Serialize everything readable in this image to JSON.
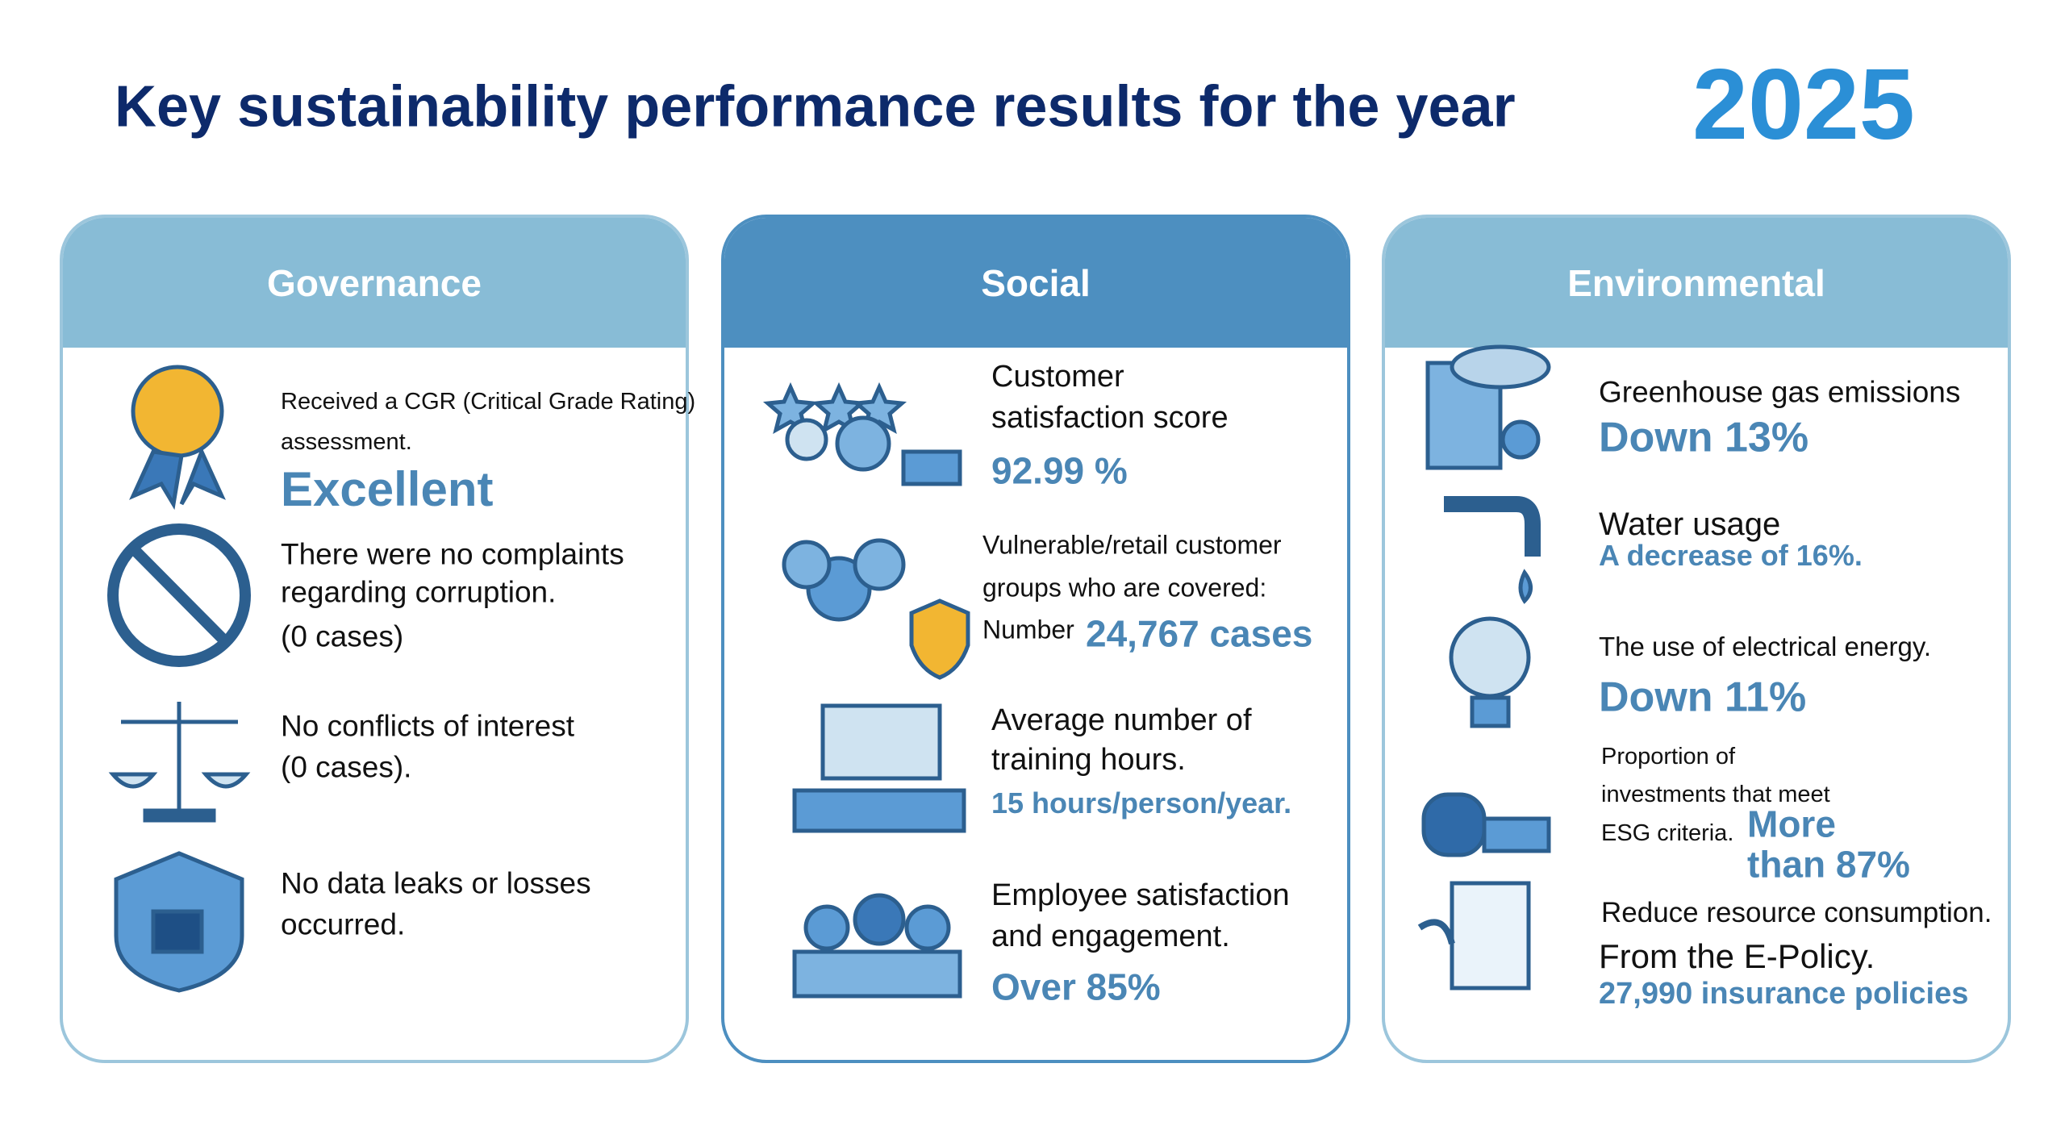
{
  "header": {
    "title": "Key sustainability performance results for the year",
    "year": "2025"
  },
  "columns": [
    {
      "title": "Governance",
      "items": [
        {
          "lines": [
            "Received a CGR (Critical Grade Rating)",
            "assessment."
          ],
          "value": "Excellent"
        },
        {
          "lines": [
            "There were no complaints",
            "regarding corruption.",
            "(0 cases)"
          ]
        },
        {
          "lines": [
            "No conflicts of interest",
            "(0 cases)."
          ]
        },
        {
          "lines": [
            "No data leaks or losses",
            "occurred."
          ]
        }
      ]
    },
    {
      "title": "Social",
      "items": [
        {
          "lines": [
            "Customer",
            "satisfaction score"
          ],
          "value": "92.99 %"
        },
        {
          "lines": [
            "Vulnerable/retail customer",
            "groups who are covered:",
            "Number"
          ],
          "value": "24,767 cases"
        },
        {
          "lines": [
            "Average number of",
            "training hours."
          ],
          "value": "15 hours/person/year."
        },
        {
          "lines": [
            "Employee satisfaction",
            "and engagement."
          ],
          "value": "Over 85%"
        }
      ]
    },
    {
      "title": "Environmental",
      "items": [
        {
          "lines": [
            "Greenhouse gas emissions"
          ],
          "value": "Down 13%"
        },
        {
          "lines": [
            "Water usage"
          ],
          "value": "A decrease of 16%."
        },
        {
          "lines": [
            "The use of electrical energy."
          ],
          "value": "Down 11%"
        },
        {
          "lines": [
            "Proportion of",
            "investments that meet",
            "ESG criteria."
          ],
          "value_lines": [
            "More",
            "than 87%"
          ]
        },
        {
          "lines": [
            "Reduce resource consumption.",
            "From the E-Policy."
          ],
          "value": "27,990 insurance policies"
        }
      ]
    }
  ]
}
